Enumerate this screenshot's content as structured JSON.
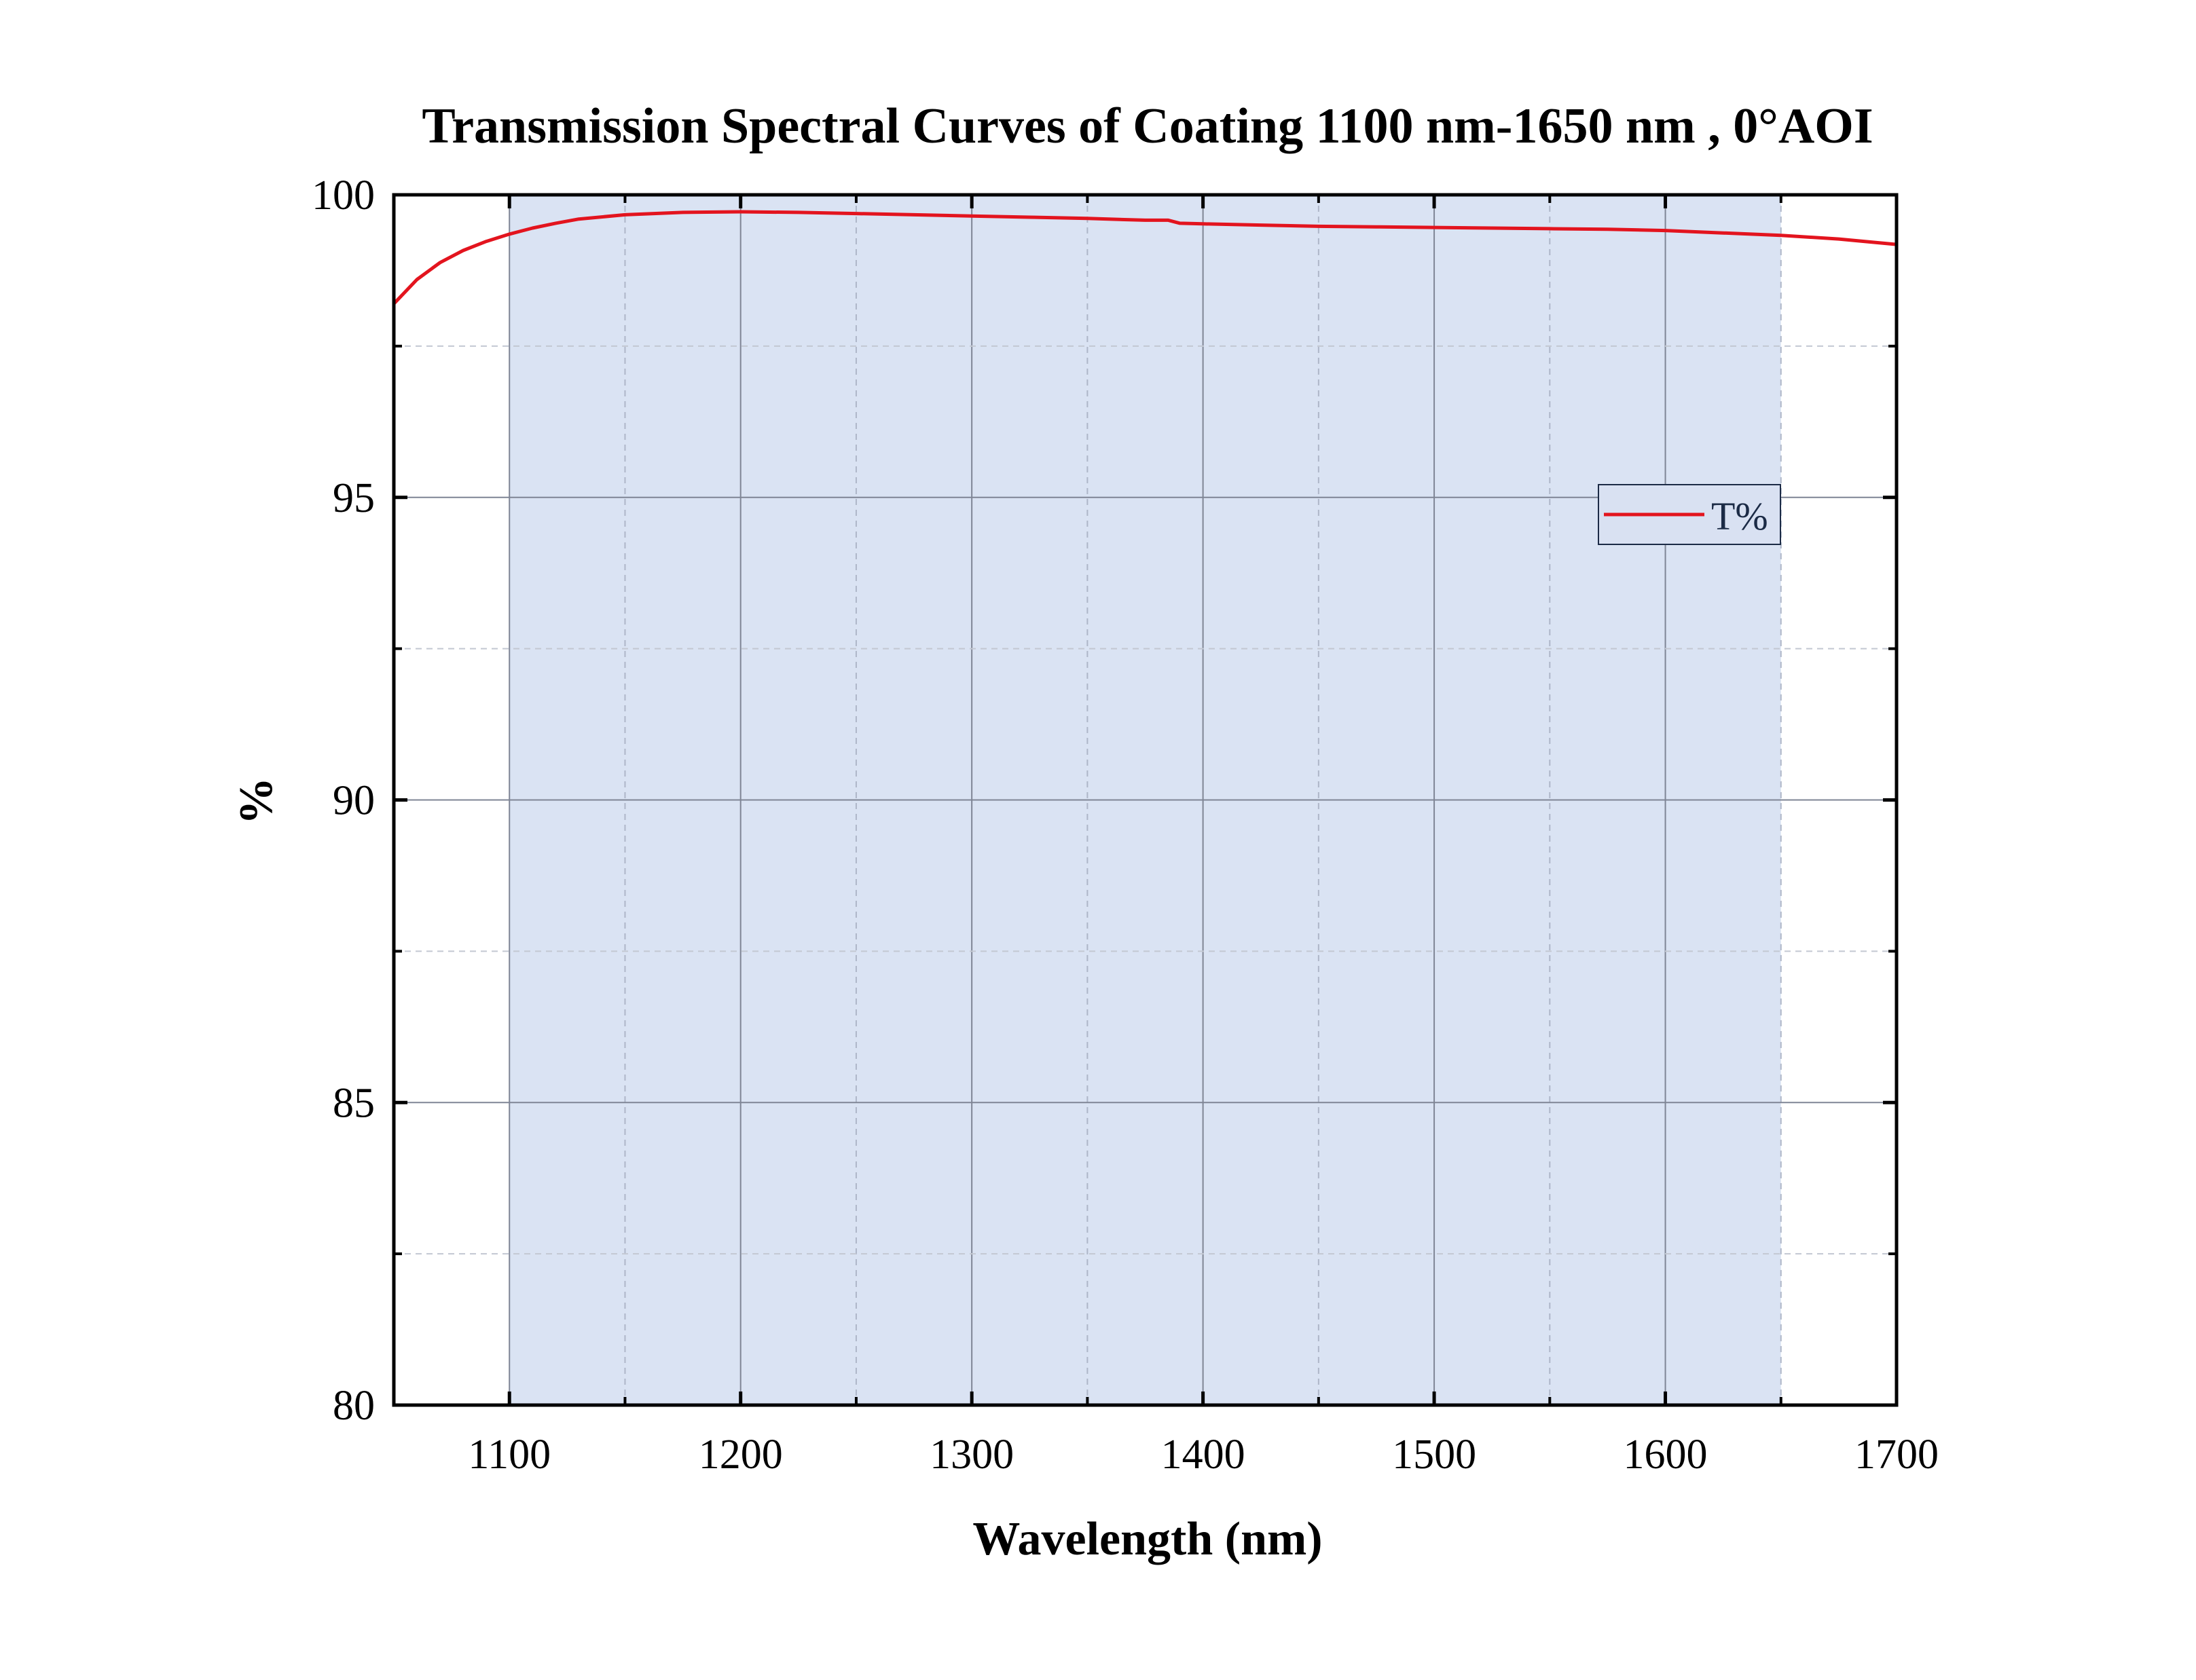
{
  "chart_data": {
    "type": "line",
    "title": "Transmission Spectral Curves of Coating 1100 nm-1650 nm , 0°AOI",
    "xlabel": "Wavelength (nm)",
    "ylabel": "%",
    "xlim": [
      1050,
      1700
    ],
    "ylim": [
      80,
      100
    ],
    "x_ticks": [
      "1100",
      "1200",
      "1300",
      "1400",
      "1500",
      "1600",
      "1700"
    ],
    "y_ticks": [
      "80",
      "85",
      "90",
      "95",
      "100"
    ],
    "shaded_band": [
      1100,
      1650
    ],
    "grid": true,
    "legend_position": "right",
    "series": [
      {
        "name": "T%",
        "color": "#e3141e",
        "x": [
          1050,
          1060,
          1070,
          1080,
          1090,
          1100,
          1110,
          1120,
          1130,
          1150,
          1175,
          1200,
          1225,
          1250,
          1275,
          1300,
          1325,
          1350,
          1375,
          1385,
          1390,
          1400,
          1425,
          1450,
          1475,
          1500,
          1525,
          1550,
          1575,
          1600,
          1625,
          1650,
          1675,
          1700
        ],
        "y": [
          98.2,
          98.6,
          98.88,
          99.08,
          99.23,
          99.35,
          99.45,
          99.53,
          99.6,
          99.67,
          99.71,
          99.72,
          99.71,
          99.69,
          99.67,
          99.65,
          99.63,
          99.61,
          99.58,
          99.58,
          99.53,
          99.52,
          99.5,
          99.48,
          99.47,
          99.46,
          99.45,
          99.44,
          99.43,
          99.41,
          99.37,
          99.33,
          99.27,
          99.18
        ]
      }
    ]
  }
}
